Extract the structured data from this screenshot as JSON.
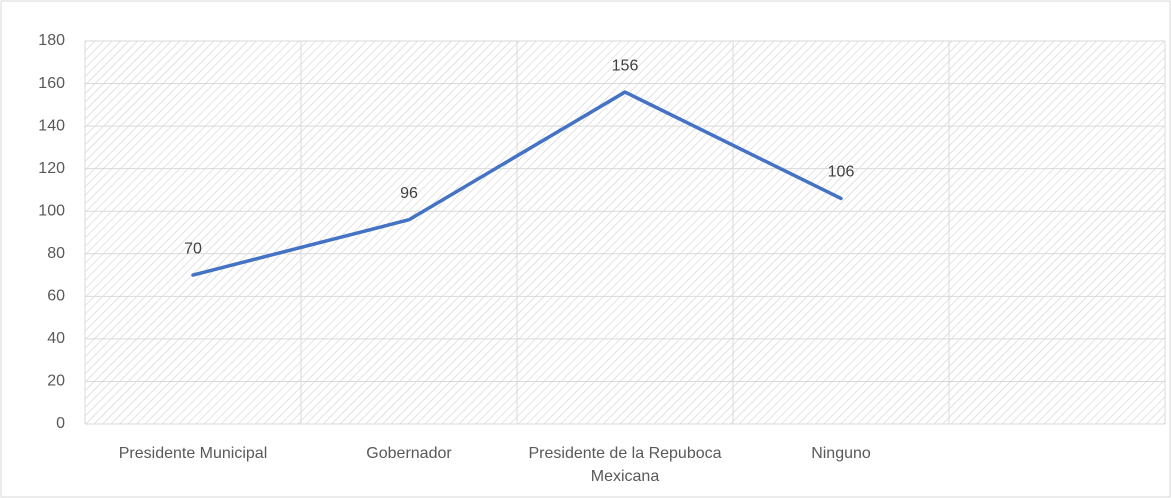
{
  "chart_data": {
    "type": "line",
    "categories": [
      "Presidente Municipal",
      "Gobernador",
      "Presidente de la Repuboca Mexicana",
      "Ninguno",
      null
    ],
    "values": [
      70,
      96,
      156,
      106,
      null
    ],
    "color": "#4472c4",
    "ylim": [
      0,
      180
    ],
    "yticks": [
      0,
      20,
      40,
      60,
      80,
      100,
      120,
      140,
      160,
      180
    ],
    "grid": true
  }
}
